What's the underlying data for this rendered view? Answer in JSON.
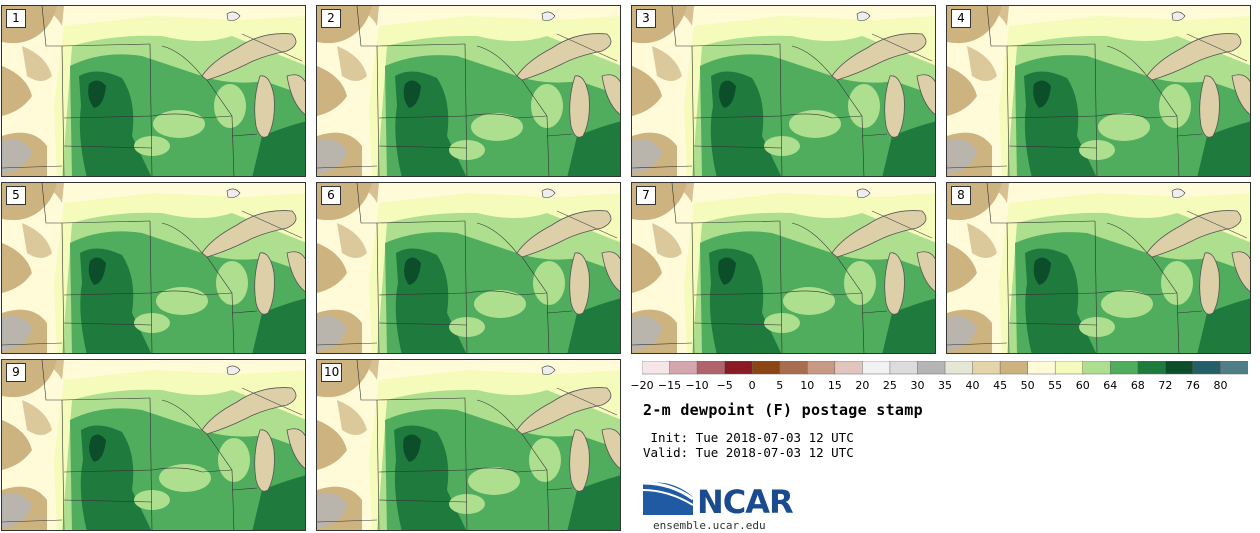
{
  "title": "2-m dewpoint (F) postage stamp",
  "init_line": " Init: Tue 2018-07-03 12 UTC",
  "valid_line": "Valid: Tue 2018-07-03 12 UTC",
  "logo": {
    "text": "NCAR",
    "url": "ensemble.ucar.edu"
  },
  "panels": [
    "1",
    "2",
    "3",
    "4",
    "5",
    "6",
    "7",
    "8",
    "9",
    "10"
  ],
  "colorbar": {
    "ticks": [
      "−20",
      "−15",
      "−10",
      "−5",
      "0",
      "5",
      "10",
      "15",
      "20",
      "25",
      "30",
      "35",
      "40",
      "45",
      "50",
      "55",
      "60",
      "64",
      "68",
      "72",
      "76",
      "80"
    ],
    "colors": [
      "#f6e6ea",
      "#d4a6ad",
      "#b0636b",
      "#8b1a24",
      "#8a4513",
      "#a86d4f",
      "#c89a86",
      "#e2c6bd",
      "#f2f2f2",
      "#dcdcdc",
      "#b5b5b5",
      "#e6e6d4",
      "#e4d4aa",
      "#cdb380",
      "#fffbd9",
      "#f5fbba",
      "#addf8e",
      "#4fad5d",
      "#1f7a3e",
      "#0c4d2a",
      "#235f68",
      "#4f7f85"
    ]
  },
  "colors": {
    "land_base": "#f5fbba",
    "west_dry": "#fffbd9",
    "tan": "#cdb380",
    "gray": "#b5b5b5",
    "light_green": "#addf8e",
    "medium_green": "#4fad5d",
    "dark_green": "#1f7a3e",
    "darkest_green": "#0c4d2a",
    "lake": "#ddd0a8"
  }
}
